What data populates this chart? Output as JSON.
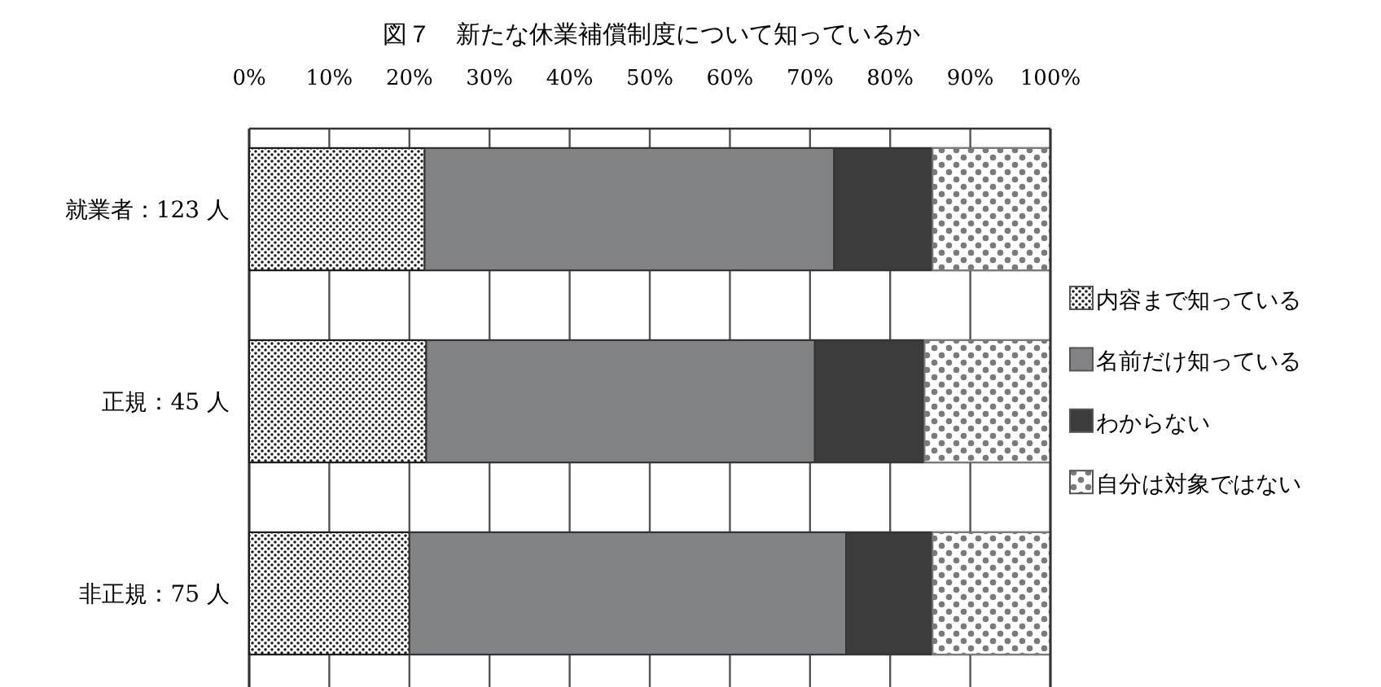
{
  "chart_data": {
    "type": "bar",
    "orientation": "horizontal",
    "stacked": true,
    "title": "図７　新たな休業補償制度について知っているか",
    "categories": [
      "就業者：123 人",
      "正規：45 人",
      "非正規：75 人"
    ],
    "series": [
      {
        "name": "内容まで知っている",
        "color": "#1e1e1e",
        "values": [
          21.9,
          22.1,
          20.0
        ]
      },
      {
        "name": "名前だけ知っている",
        "color": "#818285",
        "values": [
          51.1,
          48.5,
          54.5
        ]
      },
      {
        "name": "わからない",
        "color": "#3c3c3c",
        "values": [
          12.3,
          13.7,
          10.8
        ]
      },
      {
        "name": "自分は対象ではない",
        "color": "#7a7a7a",
        "values": [
          14.7,
          15.7,
          14.7
        ]
      }
    ],
    "xlim": [
      0,
      100
    ],
    "xticks": [
      {
        "value": 0,
        "label": "0%"
      },
      {
        "value": 10,
        "label": "10%"
      },
      {
        "value": 20,
        "label": "20%"
      },
      {
        "value": 30,
        "label": "30%"
      },
      {
        "value": 40,
        "label": "40%"
      },
      {
        "value": 50,
        "label": "50%"
      },
      {
        "value": 60,
        "label": "60%"
      },
      {
        "value": 70,
        "label": "70%"
      },
      {
        "value": 80,
        "label": "80%"
      },
      {
        "value": 90,
        "label": "90%"
      },
      {
        "value": 100,
        "label": "100%"
      }
    ],
    "grid": "x",
    "legend": "right"
  }
}
